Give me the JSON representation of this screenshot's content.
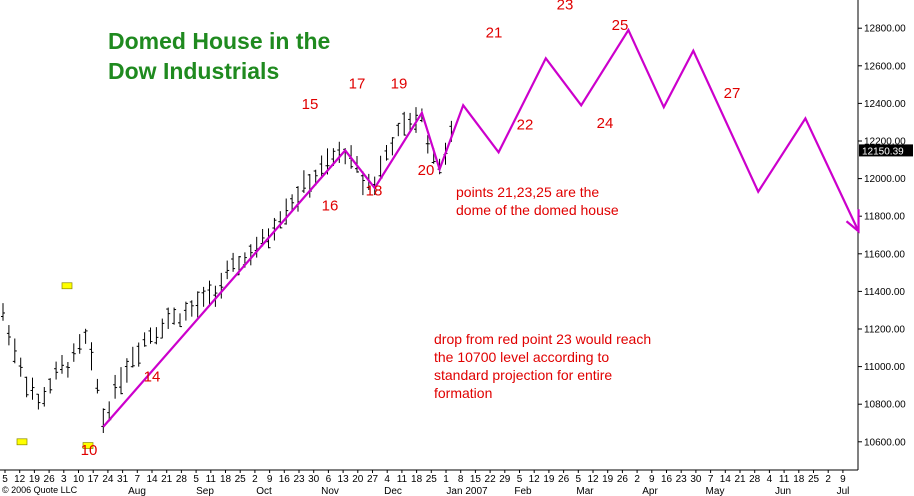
{
  "chart_data": {
    "type": "line",
    "title": "Domed House in the Dow Industrials",
    "title_lines": [
      "Domed House in the",
      "Dow Industrials"
    ],
    "ylim": [
      10450,
      12950
    ],
    "y_ticks": [
      10600,
      10800,
      11000,
      11200,
      11400,
      11600,
      11800,
      12000,
      12200,
      12400,
      12600,
      12800
    ],
    "last_price": "12150.39",
    "x_day_ticks": [
      "5",
      "12",
      "19",
      "26",
      "3",
      "10",
      "17",
      "24",
      "31",
      "7",
      "14",
      "21",
      "28",
      "5",
      "11",
      "18",
      "25",
      "2",
      "9",
      "16",
      "23",
      "30",
      "6",
      "13",
      "20",
      "27",
      "4",
      "11",
      "18",
      "25",
      "1",
      "8",
      "15",
      "22",
      "29",
      "5",
      "12",
      "19",
      "26",
      "5",
      "12",
      "19",
      "26",
      "2",
      "9",
      "16",
      "23",
      "30",
      "7",
      "14",
      "21",
      "28",
      "4",
      "11",
      "18",
      "25",
      "2",
      "9"
    ],
    "x_month_labels": [
      "Aug",
      "Sep",
      "Oct",
      "Nov",
      "Dec",
      "Jan 2007",
      "Feb",
      "Mar",
      "Apr",
      "May",
      "Jun",
      "Jul"
    ],
    "copyright": "© 2006 Quote LLC",
    "grid": false,
    "series": [
      {
        "color": "#cc00cc",
        "points": [
          {
            "x": 17,
            "y": 10680
          },
          {
            "x": 58,
            "y": 12150
          },
          {
            "x": 63,
            "y": 11950
          },
          {
            "x": 71,
            "y": 12350
          },
          {
            "x": 74,
            "y": 12050
          },
          {
            "x": 78,
            "y": 12390
          },
          {
            "x": 84,
            "y": 12140
          },
          {
            "x": 92,
            "y": 12640
          },
          {
            "x": 98,
            "y": 12390
          },
          {
            "x": 106,
            "y": 12790
          },
          {
            "x": 112,
            "y": 12380
          },
          {
            "x": 117,
            "y": 12680
          },
          {
            "x": 128,
            "y": 11930
          },
          {
            "x": 136,
            "y": 12320
          },
          {
            "x": 145,
            "y": 11720
          }
        ]
      }
    ],
    "point_labels": [
      {
        "text": "10",
        "y": 10530
      },
      {
        "text": "14",
        "y": 10920
      },
      {
        "text": "15",
        "y": 12370
      },
      {
        "text": "16",
        "y": 11830
      },
      {
        "text": "17",
        "y": 12480
      },
      {
        "text": "18",
        "y": 11910
      },
      {
        "text": "19",
        "y": 12480
      },
      {
        "text": "20",
        "y": 12020
      },
      {
        "text": "21",
        "y": 12750
      },
      {
        "text": "22",
        "y": 12260
      },
      {
        "text": "23",
        "y": 12900
      },
      {
        "text": "24",
        "y": 12270
      },
      {
        "text": "25",
        "y": 12790
      },
      {
        "text": "27",
        "y": 12430
      }
    ],
    "annotations": [
      "points 21,23,25 are the\ndome of the domed house",
      "drop from red point 23 would reach\nthe 10700 level according to\nstandard projection for entire\nformation"
    ]
  },
  "colors": {
    "projection_line": "#cc00cc",
    "title": "#1f8a1f",
    "labels": "#e00000",
    "marker": "#ffff00"
  }
}
